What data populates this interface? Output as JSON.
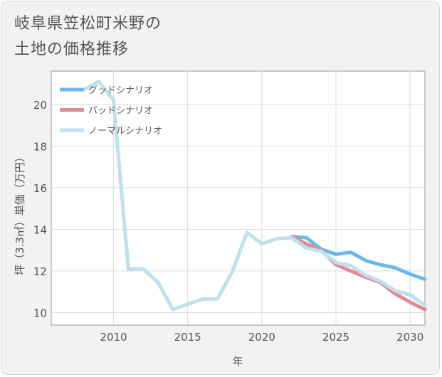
{
  "title_lines": [
    "岐阜県笠松町米野の",
    "土地の価格推移"
  ],
  "chart_data": {
    "type": "line",
    "title": "岐阜県笠松町米野の土地の価格推移",
    "xlabel": "年",
    "ylabel": "坪（3.3㎡）単価（万円）",
    "xlim": [
      2005.8,
      2031
    ],
    "ylim": [
      9.4,
      21.6
    ],
    "xticks": [
      2010,
      2015,
      2020,
      2025,
      2030
    ],
    "yticks": [
      10,
      12,
      14,
      16,
      18,
      20
    ],
    "grid": true,
    "legend_position": "top-left",
    "series": [
      {
        "name": "グッドシナリオ",
        "color": "#6bb8ea",
        "x": [
          2022,
          2023,
          2024,
          2025,
          2026,
          2027,
          2028,
          2029,
          2030,
          2031
        ],
        "y": [
          13.65,
          13.6,
          13.05,
          12.8,
          12.9,
          12.5,
          12.3,
          12.15,
          11.85,
          11.6
        ]
      },
      {
        "name": "バッドシナリオ",
        "color": "#e08a92",
        "x": [
          2022,
          2023,
          2024,
          2025,
          2026,
          2027,
          2028,
          2029,
          2030,
          2031
        ],
        "y": [
          13.65,
          13.3,
          13.0,
          12.3,
          12.0,
          11.7,
          11.45,
          10.9,
          10.5,
          10.15
        ]
      },
      {
        "name": "ノーマルシナリオ",
        "color": "#bfe0ec",
        "x": [
          2008,
          2009,
          2010,
          2011,
          2012,
          2013,
          2014,
          2015,
          2016,
          2017,
          2018,
          2019,
          2020,
          2021,
          2022,
          2023,
          2024,
          2025,
          2026,
          2027,
          2028,
          2029,
          2030,
          2031
        ],
        "y": [
          20.7,
          21.1,
          20.2,
          12.1,
          12.1,
          11.45,
          10.15,
          10.4,
          10.65,
          10.65,
          11.95,
          13.85,
          13.3,
          13.55,
          13.6,
          13.1,
          12.95,
          12.4,
          12.25,
          11.8,
          11.5,
          11.05,
          10.85,
          10.35
        ]
      }
    ]
  }
}
